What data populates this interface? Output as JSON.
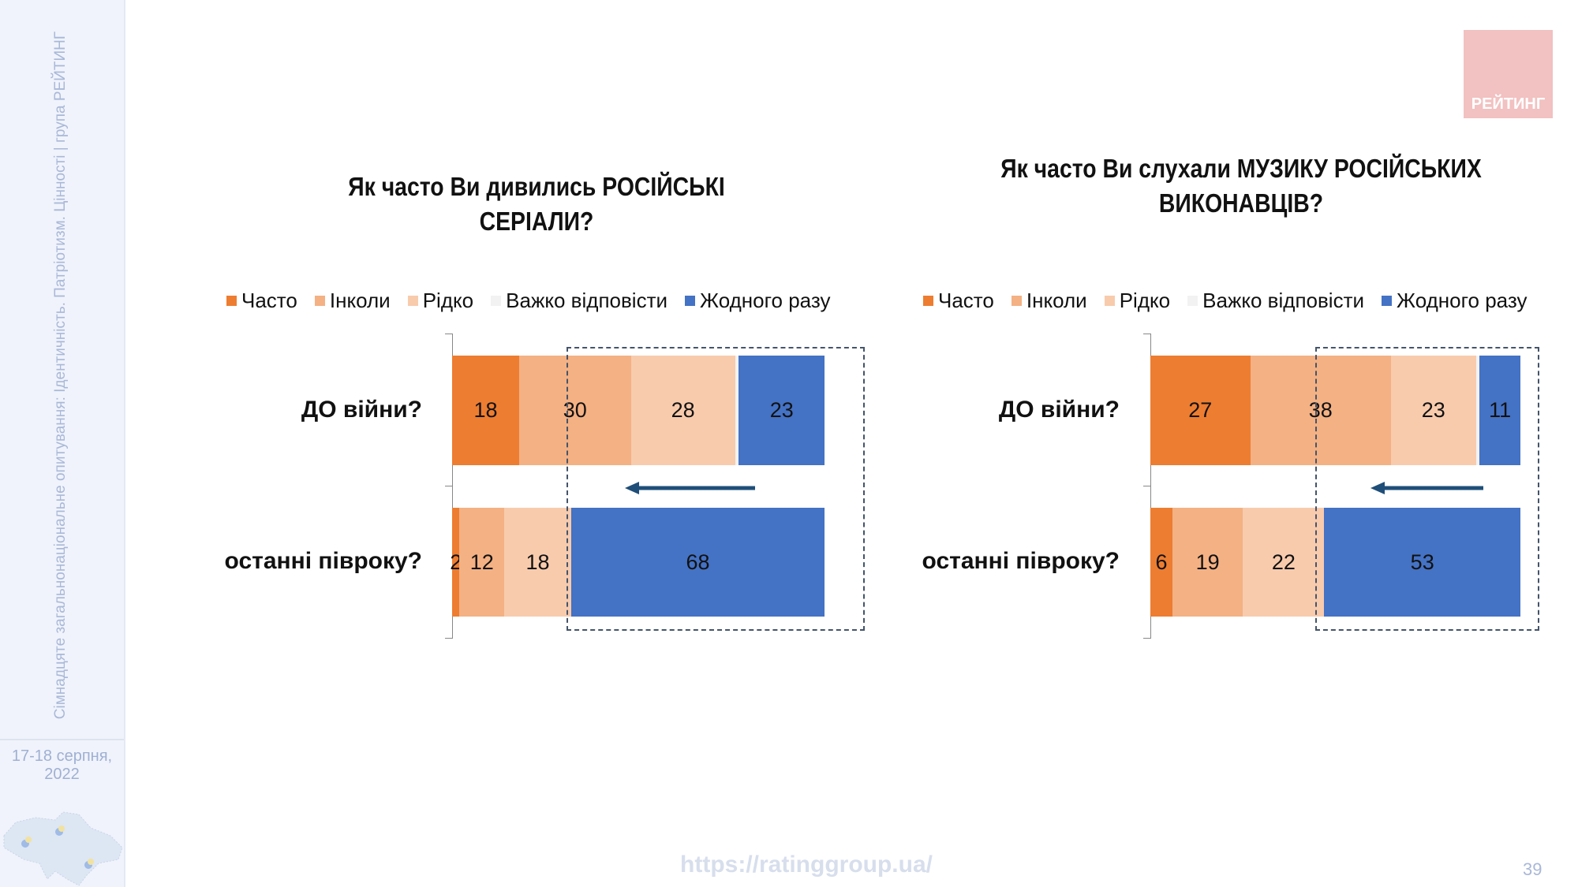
{
  "sidebar": {
    "vertical_text": "Сімнадцяте загальнонаціональне опитування: Ідентичність. Патріотизм. Цінності | група РЕЙТИНГ",
    "date_line1": "17-18 серпня,",
    "date_line2": "2022"
  },
  "logo": {
    "text": "РЕЙТИНГ",
    "color": "#f2c1c1"
  },
  "footer": {
    "url": "https://ratinggroup.ua/",
    "page_number": "39"
  },
  "legend": [
    {
      "label": "Часто",
      "color": "#ed7d31"
    },
    {
      "label": "Інколи",
      "color": "#f4b183"
    },
    {
      "label": "Рідко",
      "color": "#f8cbad"
    },
    {
      "label": "Важко відповісти",
      "color": "#f2f2f2"
    },
    {
      "label": "Жодного разу",
      "color": "#4472c4"
    }
  ],
  "chart_data": [
    {
      "type": "bar",
      "orientation": "horizontal",
      "stacked": true,
      "title": "Як часто Ви дивились РОСІЙСЬКІ СЕРІАЛИ?",
      "categories": [
        "ДО війни?",
        "останні півроку?"
      ],
      "series": [
        {
          "name": "Часто",
          "values": [
            18,
            2
          ]
        },
        {
          "name": "Інколи",
          "values": [
            30,
            12
          ]
        },
        {
          "name": "Рідко",
          "values": [
            28,
            18
          ]
        },
        {
          "name": "Важко відповісти",
          "values": [
            1,
            0
          ]
        },
        {
          "name": "Жодного разу",
          "values": [
            23,
            68
          ]
        }
      ],
      "label_series": [
        0,
        1,
        2,
        4
      ],
      "xlim": [
        0,
        100
      ],
      "legend_position": "top",
      "grid": false
    },
    {
      "type": "bar",
      "orientation": "horizontal",
      "stacked": true,
      "title": "Як часто Ви слухали МУЗИКУ РОСІЙСЬКИХ ВИКОНАВЦІВ?",
      "title_line1": "Як часто Ви слухали МУЗИКУ РОСІЙСЬКИХ",
      "title_line2": "ВИКОНАВЦІВ?",
      "categories": [
        "ДО війни?",
        "останні півроку?"
      ],
      "series": [
        {
          "name": "Часто",
          "values": [
            27,
            6
          ]
        },
        {
          "name": "Інколи",
          "values": [
            38,
            19
          ]
        },
        {
          "name": "Рідко",
          "values": [
            23,
            22
          ]
        },
        {
          "name": "Важко відповісти",
          "values": [
            1,
            0
          ]
        },
        {
          "name": "Жодного разу",
          "values": [
            11,
            53
          ]
        }
      ],
      "label_series": [
        0,
        1,
        2,
        4
      ],
      "xlim": [
        0,
        100
      ],
      "legend_position": "top",
      "grid": false
    }
  ],
  "arrow_color": "#1f4e79"
}
